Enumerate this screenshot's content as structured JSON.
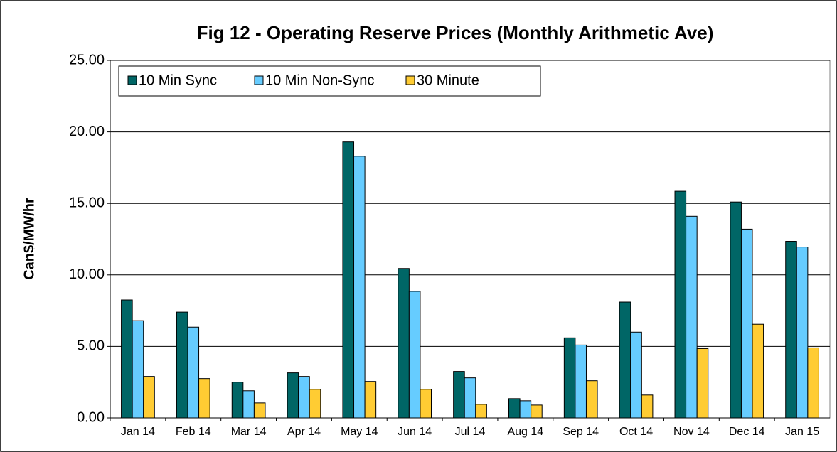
{
  "chart_data": {
    "type": "bar",
    "title": "Fig  12 - Operating Reserve Prices (Monthly Arithmetic Ave)",
    "y_label": "Can$/MW/hr",
    "categories": [
      "Jan 14",
      "Feb 14",
      "Mar 14",
      "Apr 14",
      "May 14",
      "Jun 14",
      "Jul 14",
      "Aug 14",
      "Sep 14",
      "Oct 14",
      "Nov 14",
      "Dec 14",
      "Jan 15"
    ],
    "series": [
      {
        "name": "10 Min Sync",
        "color": "#006666",
        "values": [
          8.25,
          7.4,
          2.5,
          3.15,
          19.3,
          10.45,
          3.25,
          1.35,
          5.6,
          8.1,
          15.85,
          15.1,
          12.35
        ]
      },
      {
        "name": "10 Min Non-Sync",
        "color": "#66ccff",
        "values": [
          6.8,
          6.35,
          1.9,
          2.9,
          18.3,
          8.85,
          2.8,
          1.2,
          5.1,
          6.0,
          14.1,
          13.2,
          11.95
        ]
      },
      {
        "name": "30 Minute",
        "color": "#ffcc33",
        "values": [
          2.9,
          2.75,
          1.05,
          2.0,
          2.55,
          2.0,
          0.95,
          0.9,
          2.6,
          1.6,
          4.85,
          6.55,
          4.9
        ]
      }
    ],
    "ylim": [
      0,
      25
    ],
    "yticks": [
      {
        "value": 0,
        "label": "0.00"
      },
      {
        "value": 5,
        "label": "5.00"
      },
      {
        "value": 10,
        "label": "10.00"
      },
      {
        "value": 15,
        "label": "15.00"
      },
      {
        "value": 20,
        "label": "20.00"
      },
      {
        "value": 25,
        "label": "25.00"
      }
    ],
    "grid": true,
    "legend": "top-left"
  }
}
